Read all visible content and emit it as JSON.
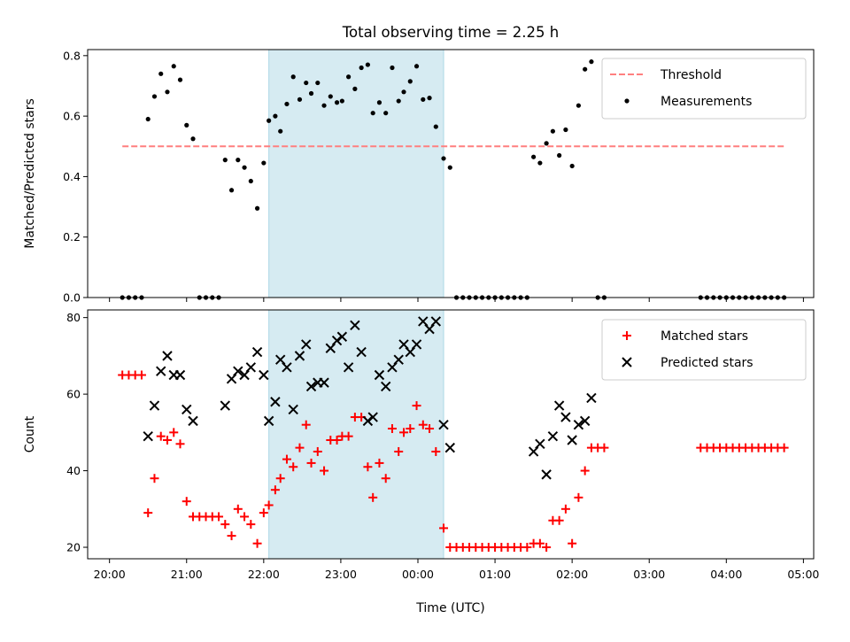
{
  "colors": {
    "shade": "#add8e6",
    "threshold": "#ff7f7f",
    "measurement": "#000000",
    "matched": "#ff0000",
    "predicted": "#000000"
  },
  "chart_data": [
    {
      "type": "scatter",
      "title": "Total observing time = 2.25 h",
      "xlabel": "",
      "ylabel": "Matched/Predicted stars",
      "ylim": [
        0,
        0.82
      ],
      "y_ticks": [
        0.0,
        0.2,
        0.4,
        0.6,
        0.8
      ],
      "y_tick_labels": [
        "0.0",
        "0.2",
        "0.4",
        "0.6",
        "0.8"
      ],
      "shaded_interval": [
        "22:04",
        "00:20"
      ],
      "threshold": {
        "name": "Threshold",
        "y": 0.5,
        "x_range": [
          "20:10",
          "04:45"
        ]
      },
      "legend": {
        "placement": "top-right",
        "entries": [
          "Threshold",
          "Measurements"
        ]
      },
      "series": [
        {
          "name": "Measurements",
          "marker": "dot",
          "points": [
            [
              "20:10",
              0
            ],
            [
              "20:15",
              0
            ],
            [
              "20:20",
              0
            ],
            [
              "20:25",
              0
            ],
            [
              "20:30",
              0.59
            ],
            [
              "20:35",
              0.665
            ],
            [
              "20:40",
              0.74
            ],
            [
              "20:45",
              0.68
            ],
            [
              "20:50",
              0.765
            ],
            [
              "20:55",
              0.72
            ],
            [
              "21:00",
              0.57
            ],
            [
              "21:05",
              0.525
            ],
            [
              "21:10",
              0
            ],
            [
              "21:15",
              0
            ],
            [
              "21:20",
              0
            ],
            [
              "21:25",
              0
            ],
            [
              "21:30",
              0.455
            ],
            [
              "21:35",
              0.355
            ],
            [
              "21:40",
              0.455
            ],
            [
              "21:45",
              0.43
            ],
            [
              "21:50",
              0.385
            ],
            [
              "21:55",
              0.295
            ],
            [
              "22:00",
              0.445
            ],
            [
              "22:04",
              0.585
            ],
            [
              "22:09",
              0.6
            ],
            [
              "22:13",
              0.55
            ],
            [
              "22:18",
              0.64
            ],
            [
              "22:23",
              0.73
            ],
            [
              "22:28",
              0.655
            ],
            [
              "22:33",
              0.71
            ],
            [
              "22:37",
              0.675
            ],
            [
              "22:42",
              0.71
            ],
            [
              "22:47",
              0.635
            ],
            [
              "22:52",
              0.665
            ],
            [
              "22:57",
              0.645
            ],
            [
              "23:01",
              0.65
            ],
            [
              "23:06",
              0.73
            ],
            [
              "23:11",
              0.69
            ],
            [
              "23:16",
              0.76
            ],
            [
              "23:21",
              0.77
            ],
            [
              "23:25",
              0.61
            ],
            [
              "23:30",
              0.645
            ],
            [
              "23:35",
              0.61
            ],
            [
              "23:40",
              0.76
            ],
            [
              "23:45",
              0.65
            ],
            [
              "23:49",
              0.68
            ],
            [
              "23:54",
              0.715
            ],
            [
              "23:59",
              0.765
            ],
            [
              "00:04",
              0.655
            ],
            [
              "00:09",
              0.66
            ],
            [
              "00:14",
              0.565
            ],
            [
              "00:20",
              0.46
            ],
            [
              "00:25",
              0.43
            ],
            [
              "00:30",
              0
            ],
            [
              "00:35",
              0
            ],
            [
              "00:40",
              0
            ],
            [
              "00:45",
              0
            ],
            [
              "00:50",
              0
            ],
            [
              "00:55",
              0
            ],
            [
              "01:00",
              0
            ],
            [
              "01:05",
              0
            ],
            [
              "01:10",
              0
            ],
            [
              "01:15",
              0
            ],
            [
              "01:20",
              0
            ],
            [
              "01:25",
              0
            ],
            [
              "01:30",
              0.465
            ],
            [
              "01:35",
              0.445
            ],
            [
              "01:40",
              0.51
            ],
            [
              "01:45",
              0.55
            ],
            [
              "01:50",
              0.47
            ],
            [
              "01:55",
              0.555
            ],
            [
              "02:00",
              0.435
            ],
            [
              "02:05",
              0.635
            ],
            [
              "02:10",
              0.755
            ],
            [
              "02:15",
              0.78
            ],
            [
              "02:20",
              0
            ],
            [
              "02:25",
              0
            ],
            [
              "03:40",
              0
            ],
            [
              "03:45",
              0
            ],
            [
              "03:50",
              0
            ],
            [
              "03:55",
              0
            ],
            [
              "04:00",
              0
            ],
            [
              "04:05",
              0
            ],
            [
              "04:10",
              0
            ],
            [
              "04:15",
              0
            ],
            [
              "04:20",
              0
            ],
            [
              "04:25",
              0
            ],
            [
              "04:30",
              0
            ],
            [
              "04:35",
              0
            ],
            [
              "04:40",
              0
            ],
            [
              "04:45",
              0
            ]
          ]
        }
      ]
    },
    {
      "type": "scatter",
      "title": "",
      "xlabel": "Time (UTC)",
      "ylabel": "Count",
      "ylim": [
        17,
        82
      ],
      "y_ticks": [
        20,
        40,
        60,
        80
      ],
      "y_tick_labels": [
        "20",
        "40",
        "60",
        "80"
      ],
      "x_ticks": [
        "20:00",
        "21:00",
        "22:00",
        "23:00",
        "00:00",
        "01:00",
        "02:00",
        "03:00",
        "04:00",
        "05:00"
      ],
      "x_tick_labels": [
        "20:00",
        "21:00",
        "22:00",
        "23:00",
        "00:00",
        "01:00",
        "02:00",
        "03:00",
        "04:00",
        "05:00"
      ],
      "shaded_interval": [
        "22:04",
        "00:20"
      ],
      "legend": {
        "placement": "top-right",
        "entries": [
          "Matched stars",
          "Predicted stars"
        ]
      },
      "series": [
        {
          "name": "Matched stars",
          "marker": "plus",
          "points": [
            [
              "20:10",
              65
            ],
            [
              "20:15",
              65
            ],
            [
              "20:20",
              65
            ],
            [
              "20:25",
              65
            ],
            [
              "20:30",
              29
            ],
            [
              "20:35",
              38
            ],
            [
              "20:40",
              49
            ],
            [
              "20:45",
              48
            ],
            [
              "20:50",
              50
            ],
            [
              "20:55",
              47
            ],
            [
              "21:00",
              32
            ],
            [
              "21:05",
              28
            ],
            [
              "21:10",
              28
            ],
            [
              "21:15",
              28
            ],
            [
              "21:20",
              28
            ],
            [
              "21:25",
              28
            ],
            [
              "21:30",
              26
            ],
            [
              "21:35",
              23
            ],
            [
              "21:40",
              30
            ],
            [
              "21:45",
              28
            ],
            [
              "21:50",
              26
            ],
            [
              "21:55",
              21
            ],
            [
              "22:00",
              29
            ],
            [
              "22:04",
              31
            ],
            [
              "22:09",
              35
            ],
            [
              "22:13",
              38
            ],
            [
              "22:18",
              43
            ],
            [
              "22:23",
              41
            ],
            [
              "22:28",
              46
            ],
            [
              "22:33",
              52
            ],
            [
              "22:37",
              42
            ],
            [
              "22:42",
              45
            ],
            [
              "22:47",
              40
            ],
            [
              "22:52",
              48
            ],
            [
              "22:57",
              48
            ],
            [
              "23:01",
              49
            ],
            [
              "23:06",
              49
            ],
            [
              "23:11",
              54
            ],
            [
              "23:16",
              54
            ],
            [
              "23:21",
              41
            ],
            [
              "23:25",
              33
            ],
            [
              "23:30",
              42
            ],
            [
              "23:35",
              38
            ],
            [
              "23:40",
              51
            ],
            [
              "23:45",
              45
            ],
            [
              "23:49",
              50
            ],
            [
              "23:54",
              51
            ],
            [
              "23:59",
              57
            ],
            [
              "00:04",
              52
            ],
            [
              "00:09",
              51
            ],
            [
              "00:14",
              45
            ],
            [
              "00:20",
              25
            ],
            [
              "00:25",
              20
            ],
            [
              "00:30",
              20
            ],
            [
              "00:35",
              20
            ],
            [
              "00:40",
              20
            ],
            [
              "00:45",
              20
            ],
            [
              "00:50",
              20
            ],
            [
              "00:55",
              20
            ],
            [
              "01:00",
              20
            ],
            [
              "01:05",
              20
            ],
            [
              "01:10",
              20
            ],
            [
              "01:15",
              20
            ],
            [
              "01:20",
              20
            ],
            [
              "01:25",
              20
            ],
            [
              "01:30",
              21
            ],
            [
              "01:35",
              21
            ],
            [
              "01:40",
              20
            ],
            [
              "01:45",
              27
            ],
            [
              "01:50",
              27
            ],
            [
              "01:55",
              30
            ],
            [
              "02:00",
              21
            ],
            [
              "02:05",
              33
            ],
            [
              "02:10",
              40
            ],
            [
              "02:15",
              46
            ],
            [
              "02:20",
              46
            ],
            [
              "02:25",
              46
            ],
            [
              "03:40",
              46
            ],
            [
              "03:45",
              46
            ],
            [
              "03:50",
              46
            ],
            [
              "03:55",
              46
            ],
            [
              "04:00",
              46
            ],
            [
              "04:05",
              46
            ],
            [
              "04:10",
              46
            ],
            [
              "04:15",
              46
            ],
            [
              "04:20",
              46
            ],
            [
              "04:25",
              46
            ],
            [
              "04:30",
              46
            ],
            [
              "04:35",
              46
            ],
            [
              "04:40",
              46
            ],
            [
              "04:45",
              46
            ]
          ]
        },
        {
          "name": "Predicted stars",
          "marker": "x",
          "points": [
            [
              "20:30",
              49
            ],
            [
              "20:35",
              57
            ],
            [
              "20:40",
              66
            ],
            [
              "20:45",
              70
            ],
            [
              "20:50",
              65
            ],
            [
              "20:55",
              65
            ],
            [
              "21:00",
              56
            ],
            [
              "21:05",
              53
            ],
            [
              "21:30",
              57
            ],
            [
              "21:35",
              64
            ],
            [
              "21:40",
              66
            ],
            [
              "21:45",
              65
            ],
            [
              "21:50",
              67
            ],
            [
              "21:55",
              71
            ],
            [
              "22:00",
              65
            ],
            [
              "22:04",
              53
            ],
            [
              "22:09",
              58
            ],
            [
              "22:13",
              69
            ],
            [
              "22:18",
              67
            ],
            [
              "22:23",
              56
            ],
            [
              "22:28",
              70
            ],
            [
              "22:33",
              73
            ],
            [
              "22:37",
              62
            ],
            [
              "22:42",
              63
            ],
            [
              "22:47",
              63
            ],
            [
              "22:52",
              72
            ],
            [
              "22:57",
              74
            ],
            [
              "23:01",
              75
            ],
            [
              "23:06",
              67
            ],
            [
              "23:11",
              78
            ],
            [
              "23:16",
              71
            ],
            [
              "23:21",
              53
            ],
            [
              "23:25",
              54
            ],
            [
              "23:30",
              65
            ],
            [
              "23:35",
              62
            ],
            [
              "23:40",
              67
            ],
            [
              "23:45",
              69
            ],
            [
              "23:49",
              73
            ],
            [
              "23:54",
              71
            ],
            [
              "23:59",
              73
            ],
            [
              "00:04",
              79
            ],
            [
              "00:09",
              77
            ],
            [
              "00:14",
              79
            ],
            [
              "00:20",
              52
            ],
            [
              "00:25",
              46
            ],
            [
              "01:30",
              45
            ],
            [
              "01:35",
              47
            ],
            [
              "01:40",
              39
            ],
            [
              "01:45",
              49
            ],
            [
              "01:50",
              57
            ],
            [
              "01:55",
              54
            ],
            [
              "02:00",
              48
            ],
            [
              "02:05",
              52
            ],
            [
              "02:10",
              53
            ],
            [
              "02:15",
              59
            ]
          ]
        }
      ]
    }
  ]
}
